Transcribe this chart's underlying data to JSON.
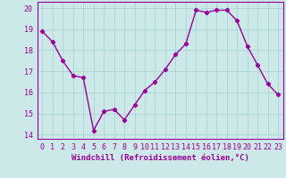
{
  "x_values": [
    0,
    1,
    2,
    3,
    4,
    5,
    6,
    7,
    8,
    9,
    10,
    11,
    12,
    13,
    14,
    15,
    16,
    17,
    18,
    19,
    20,
    21,
    22,
    23
  ],
  "y_values": [
    18.9,
    18.4,
    17.5,
    16.8,
    16.7,
    14.2,
    15.1,
    15.2,
    14.7,
    15.4,
    16.1,
    16.5,
    17.1,
    17.8,
    18.3,
    19.9,
    19.8,
    19.9,
    19.9,
    19.4,
    18.2,
    17.3,
    16.4,
    15.9
  ],
  "line_color": "#990099",
  "marker": "D",
  "marker_size": 2.2,
  "linewidth": 1.0,
  "bg_color": "#cce8e8",
  "plot_bg_color": "#cce8e8",
  "grid_color": "#aad4d4",
  "xlabel": "Windchill (Refroidissement éolien,°C)",
  "xlabel_fontsize": 6.5,
  "tick_fontsize": 6.0,
  "ylim": [
    13.8,
    20.3
  ],
  "xlim": [
    -0.5,
    23.5
  ],
  "yticks": [
    14,
    15,
    16,
    17,
    18,
    19,
    20
  ],
  "xticks": [
    0,
    1,
    2,
    3,
    4,
    5,
    6,
    7,
    8,
    9,
    10,
    11,
    12,
    13,
    14,
    15,
    16,
    17,
    18,
    19,
    20,
    21,
    22,
    23
  ]
}
